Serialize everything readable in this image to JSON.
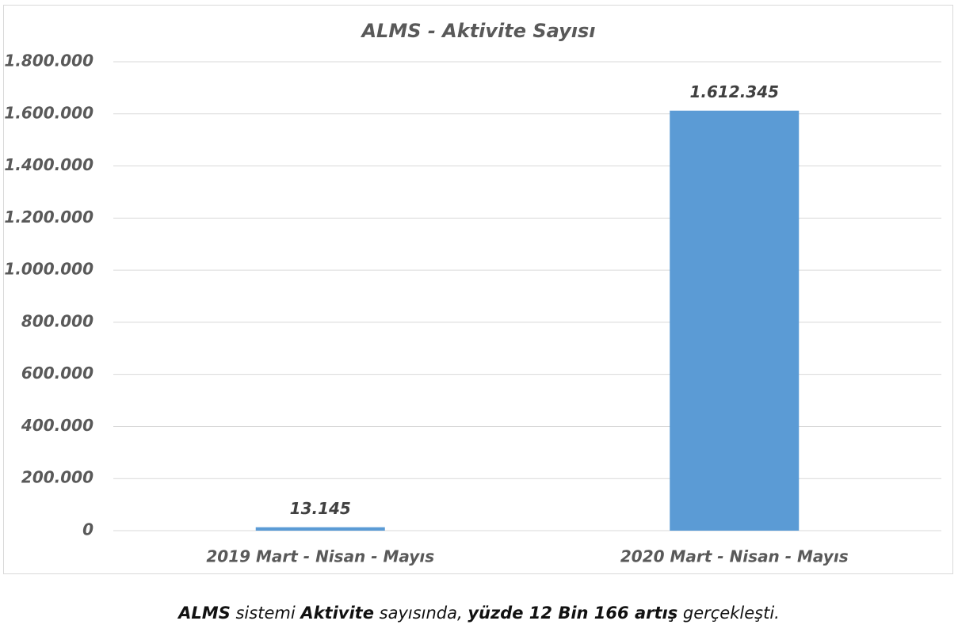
{
  "chart_data": {
    "type": "bar",
    "title": "ALMS - Aktivite Sayısı",
    "categories": [
      "2019 Mart - Nisan - Mayıs",
      "2020 Mart - Nisan - Mayıs"
    ],
    "values": [
      13145,
      1612345
    ],
    "value_labels": [
      "13.145",
      "1.612.345"
    ],
    "color": "#5b9bd5",
    "ylim": [
      0,
      1800000
    ],
    "yticks": [
      0,
      {
        "value": 200000,
        "label": "200.000"
      },
      {
        "value": 400000,
        "label": "400.000"
      },
      {
        "value": 600000,
        "label": "600.000"
      },
      {
        "value": 800000,
        "label": "800.000"
      },
      {
        "value": 1000000,
        "label": "1.000.000"
      },
      {
        "value": 1200000,
        "label": "1.200.000"
      },
      {
        "value": 1400000,
        "label": "1.400.000"
      },
      {
        "value": 1600000,
        "label": "1.600.000"
      },
      {
        "value": 1800000,
        "label": "1.800.000"
      }
    ],
    "grid": true
  },
  "caption": [
    {
      "text": "ALMS",
      "bold": true
    },
    {
      "text": " sistemi ",
      "bold": false
    },
    {
      "text": "Aktivite",
      "bold": true
    },
    {
      "text": " sayısında, ",
      "bold": false
    },
    {
      "text": "yüzde 12 Bin 166 artış",
      "bold": true
    },
    {
      "text": " gerçekleşti.",
      "bold": false
    }
  ]
}
